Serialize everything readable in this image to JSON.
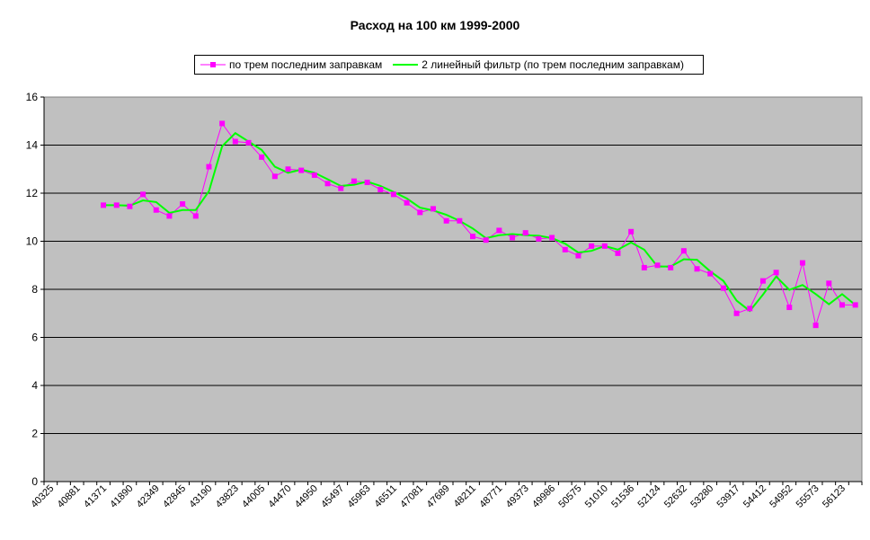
{
  "chart_data": {
    "type": "line",
    "title": "Расход на 100 км 1999-2000",
    "xlabel": "",
    "ylabel": "",
    "ylim": [
      0,
      16
    ],
    "yticks": [
      0,
      2,
      4,
      6,
      8,
      10,
      12,
      14,
      16
    ],
    "grid": "horizontal",
    "legend_position": "top",
    "x_tick_labels": [
      "40325",
      "40881",
      "41371",
      "41890",
      "42349",
      "42845",
      "43190",
      "43823",
      "44005",
      "44470",
      "44950",
      "45497",
      "45963",
      "46511",
      "47081",
      "47689",
      "48211",
      "48771",
      "49373",
      "49986",
      "50575",
      "51010",
      "51536",
      "52124",
      "52632",
      "53280",
      "53917",
      "54412",
      "54952",
      "55573",
      "56123"
    ],
    "categories_count": 62,
    "colors": {
      "plot_bg": "#c0c0c0",
      "series_raw": "#ff00ff",
      "series_filter": "#00ff00",
      "grid": "#000000"
    },
    "series": [
      {
        "name": "по трем последним заправкам",
        "start_index": 4,
        "values": [
          11.5,
          11.5,
          11.45,
          11.95,
          11.3,
          11.05,
          11.55,
          11.05,
          13.1,
          14.9,
          14.15,
          14.1,
          13.5,
          12.7,
          13.0,
          12.95,
          12.75,
          12.4,
          12.2,
          12.5,
          12.45,
          12.15,
          11.95,
          11.6,
          11.2,
          11.35,
          10.85,
          10.85,
          10.2,
          10.05,
          10.45,
          10.15,
          10.35,
          10.1,
          10.15,
          9.65,
          9.4,
          9.8,
          9.8,
          9.5,
          10.4,
          8.9,
          9.0,
          8.9,
          9.6,
          8.85,
          8.65,
          8.05,
          7.0,
          7.2,
          8.35,
          8.7,
          7.25,
          9.1,
          6.5,
          8.25,
          7.35,
          7.35
        ]
      },
      {
        "name": "2 линейный фильтр (по трем последним заправкам)",
        "start_index": 4,
        "values": [
          11.5,
          11.5,
          11.48,
          11.7,
          11.63,
          11.18,
          11.3,
          11.3,
          12.08,
          13.95,
          14.5,
          14.15,
          13.8,
          13.1,
          12.85,
          12.98,
          12.85,
          12.58,
          12.3,
          12.35,
          12.48,
          12.3,
          12.05,
          11.78,
          11.4,
          11.28,
          11.1,
          10.85,
          10.53,
          10.13,
          10.25,
          10.3,
          10.25,
          10.23,
          10.13,
          9.9,
          9.53,
          9.6,
          9.8,
          9.65,
          9.95,
          9.65,
          8.95,
          8.95,
          9.25,
          9.23,
          8.75,
          8.35,
          7.53,
          7.1,
          7.78,
          8.53,
          7.98,
          8.18,
          7.8,
          7.38,
          7.8,
          7.35
        ]
      }
    ]
  }
}
